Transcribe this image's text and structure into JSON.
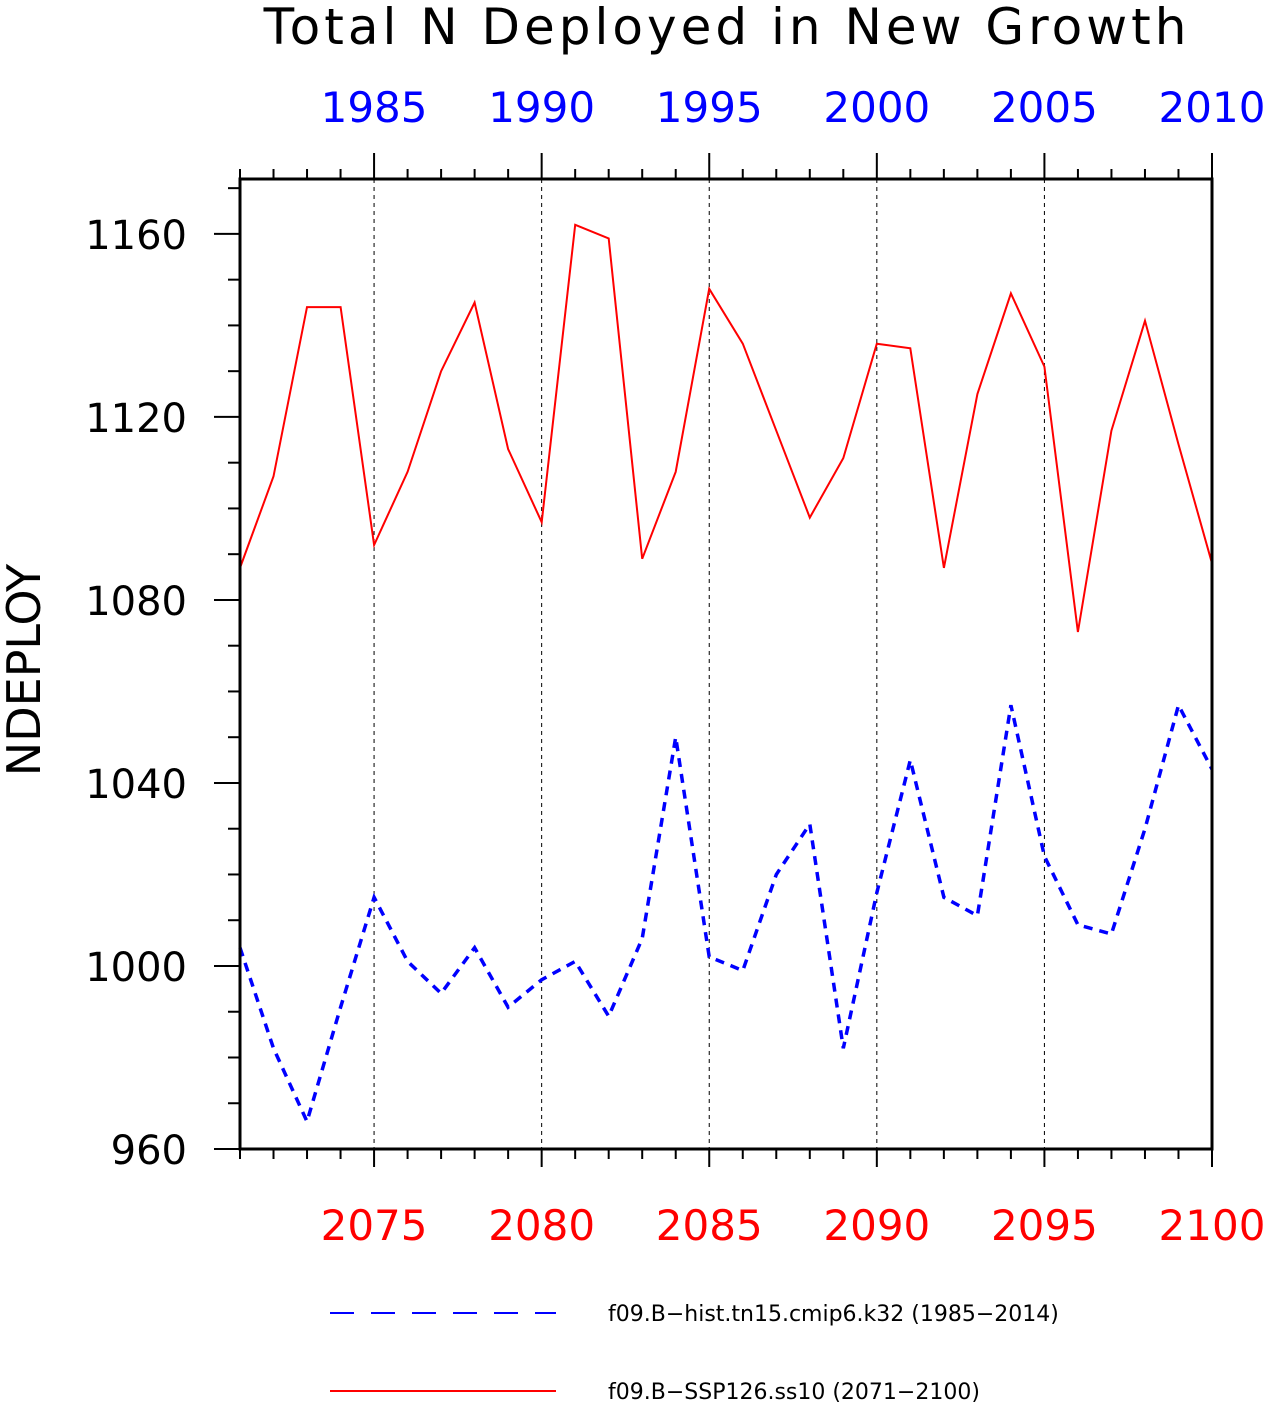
{
  "chart_data": {
    "type": "line",
    "title": "Total N Deployed in New Growth",
    "ylabel": "NDEPLOY",
    "ylim": [
      960,
      1172
    ],
    "yticks": [
      "960",
      "1000",
      "1040",
      "1080",
      "1120",
      "1160"
    ],
    "grid": "vertical dashed lines at bottom-axis major ticks",
    "top_axis": {
      "color": "#0000ff",
      "tick_labels": [
        "1985",
        "1990",
        "1995",
        "2000",
        "2005",
        "2010"
      ],
      "range": [
        1981,
        2010
      ]
    },
    "bottom_axis": {
      "color": "#ff0000",
      "tick_labels": [
        "2075",
        "2080",
        "2085",
        "2090",
        "2095",
        "2100"
      ],
      "range": [
        2071,
        2100
      ]
    },
    "legend_position": "bottom",
    "series": [
      {
        "name": "f09.B−hist.tn15.cmip6.k32 (1985−2014)",
        "color": "#0000ff",
        "style": "dashed",
        "axis": "top",
        "x": [
          1981,
          1982,
          1983,
          1984,
          1985,
          1986,
          1987,
          1988,
          1989,
          1990,
          1991,
          1992,
          1993,
          1994,
          1995,
          1996,
          1997,
          1998,
          1999,
          2000,
          2001,
          2002,
          2003,
          2004,
          2005,
          2006,
          2007,
          2008,
          2009,
          2010
        ],
        "values": [
          1004,
          982,
          966,
          991,
          1015,
          1001,
          994,
          1004,
          991,
          997,
          1001,
          989,
          1006,
          1050,
          1002,
          999,
          1020,
          1031,
          982,
          1016,
          1045,
          1015,
          1011,
          1057,
          1024,
          1009,
          1007,
          1030,
          1057,
          1043
        ]
      },
      {
        "name": "f09.B−SSP126.ss10 (2071−2100)",
        "color": "#ff0000",
        "style": "solid",
        "axis": "bottom",
        "x": [
          2071,
          2072,
          2073,
          2074,
          2075,
          2076,
          2077,
          2078,
          2079,
          2080,
          2081,
          2082,
          2083,
          2084,
          2085,
          2086,
          2087,
          2088,
          2089,
          2090,
          2091,
          2092,
          2093,
          2094,
          2095,
          2096,
          2097,
          2098,
          2099,
          2100
        ],
        "values": [
          1087,
          1107,
          1144,
          1144,
          1092,
          1108,
          1130,
          1145,
          1113,
          1097,
          1162,
          1159,
          1089,
          1108,
          1148,
          1136,
          1117,
          1098,
          1111,
          1136,
          1135,
          1087,
          1125,
          1147,
          1131,
          1073,
          1117,
          1141,
          1114,
          1088
        ]
      }
    ]
  }
}
